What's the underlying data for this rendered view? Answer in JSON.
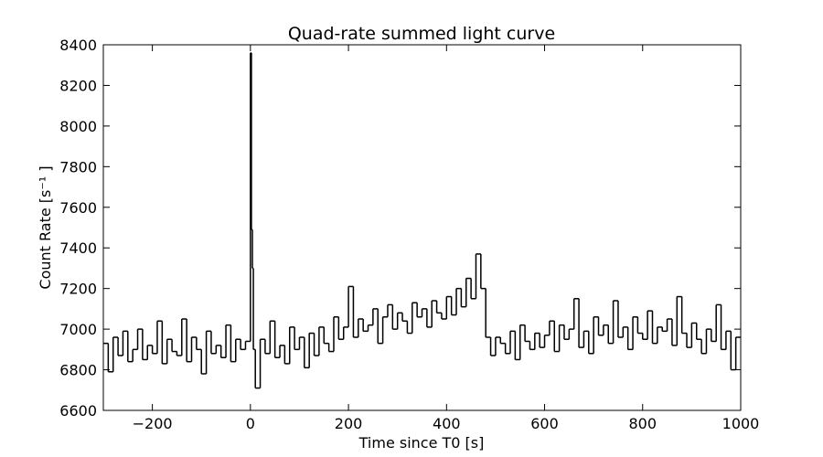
{
  "chart_data": {
    "type": "line",
    "step": "post",
    "title": "Quad-rate summed light curve",
    "xlabel": "Time since T0 [s]",
    "ylabel": "Count Rate [s⁻¹ ]",
    "x": [
      -300,
      -290,
      -280,
      -270,
      -260,
      -250,
      -240,
      -230,
      -220,
      -210,
      -200,
      -190,
      -180,
      -170,
      -160,
      -150,
      -140,
      -130,
      -120,
      -110,
      -100,
      -90,
      -80,
      -70,
      -60,
      -50,
      -40,
      -30,
      -20,
      -10,
      0,
      2,
      4,
      6,
      10,
      20,
      30,
      40,
      50,
      60,
      70,
      80,
      90,
      100,
      110,
      120,
      130,
      140,
      150,
      160,
      170,
      180,
      190,
      200,
      210,
      220,
      230,
      240,
      250,
      260,
      270,
      280,
      290,
      300,
      310,
      320,
      330,
      340,
      350,
      360,
      370,
      380,
      390,
      400,
      410,
      420,
      430,
      440,
      450,
      460,
      470,
      480,
      490,
      500,
      510,
      520,
      530,
      540,
      550,
      560,
      570,
      580,
      590,
      600,
      610,
      620,
      630,
      640,
      650,
      660,
      670,
      680,
      690,
      700,
      710,
      720,
      730,
      740,
      750,
      760,
      770,
      780,
      790,
      800,
      810,
      820,
      830,
      840,
      850,
      860,
      870,
      880,
      890,
      900,
      910,
      920,
      930,
      940,
      950,
      960,
      970,
      980,
      990
    ],
    "series": [
      {
        "color": "#000000",
        "values": [
          6930,
          6790,
          6960,
          6870,
          6990,
          6840,
          6900,
          7000,
          6850,
          6920,
          6880,
          7040,
          6830,
          6950,
          6890,
          6870,
          7050,
          6840,
          6960,
          6900,
          6780,
          6990,
          6880,
          6920,
          6860,
          7020,
          6840,
          6950,
          6900,
          6940,
          8360,
          7490,
          7300,
          6900,
          6710,
          6950,
          6880,
          7040,
          6860,
          6920,
          6830,
          7010,
          6900,
          6960,
          6810,
          6980,
          6870,
          7010,
          6930,
          6890,
          7060,
          6950,
          7010,
          7210,
          6960,
          7050,
          6990,
          7020,
          7100,
          6930,
          7060,
          7120,
          7000,
          7080,
          7040,
          6980,
          7130,
          7060,
          7100,
          7010,
          7140,
          7080,
          7050,
          7160,
          7070,
          7200,
          7110,
          7250,
          7150,
          7370,
          7200,
          6960,
          6870,
          6960,
          6930,
          6880,
          6990,
          6850,
          7020,
          6940,
          6900,
          6980,
          6910,
          6970,
          7040,
          6890,
          7020,
          6950,
          7000,
          7150,
          6910,
          6990,
          6880,
          7060,
          6970,
          7020,
          6930,
          7140,
          6960,
          7010,
          6900,
          7060,
          6980,
          6950,
          7090,
          6930,
          7010,
          6990,
          7050,
          6920,
          7160,
          6980,
          6910,
          7030,
          6950,
          6880,
          7000,
          6940,
          7120,
          6900,
          6990,
          6800,
          6960
        ]
      }
    ],
    "xlim": [
      -300,
      1000
    ],
    "xticks": [
      {
        "value": -200,
        "label": "−200"
      },
      0,
      200,
      400,
      600,
      800,
      1000
    ],
    "ylim": [
      6600,
      8400
    ],
    "yticks": [
      6600,
      6800,
      7000,
      7200,
      7400,
      7600,
      7800,
      8000,
      8200,
      8400
    ]
  }
}
